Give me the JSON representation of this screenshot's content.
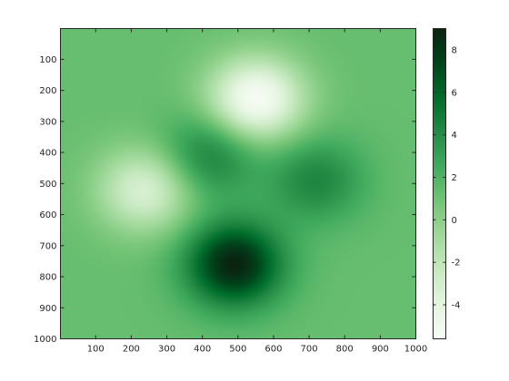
{
  "chart_data": {
    "type": "heatmap",
    "title": "",
    "xlabel": "",
    "ylabel": "",
    "xlim": [
      1,
      1000
    ],
    "ylim": [
      1,
      1000
    ],
    "y_axis_reversed": true,
    "x_ticks": [
      100,
      200,
      300,
      400,
      500,
      600,
      700,
      800,
      900,
      1000
    ],
    "y_ticks": [
      100,
      200,
      300,
      400,
      500,
      600,
      700,
      800,
      900,
      1000
    ],
    "colormap": [
      "#f7fcf5",
      "#e5f5e0",
      "#c7e9c0",
      "#a1d99b",
      "#74c476",
      "#41ab5d",
      "#238b45",
      "#006d2c",
      "#00441b",
      "#0b2412"
    ],
    "colorbar": {
      "position": "right",
      "clim": [
        -5.6,
        9.0
      ],
      "ticks": [
        -4,
        -2,
        0,
        2,
        4,
        6,
        8
      ]
    },
    "background_level": 1.3,
    "features": [
      {
        "label": "peak",
        "x": 490,
        "y": 760,
        "value": 9.0
      },
      {
        "label": "peak",
        "x": 420,
        "y": 410,
        "value": 4.8
      },
      {
        "label": "peak",
        "x": 720,
        "y": 490,
        "value": 4.4
      },
      {
        "label": "trough",
        "x": 550,
        "y": 230,
        "value": -5.6
      },
      {
        "label": "trough",
        "x": 240,
        "y": 520,
        "value": -3.4
      }
    ]
  }
}
